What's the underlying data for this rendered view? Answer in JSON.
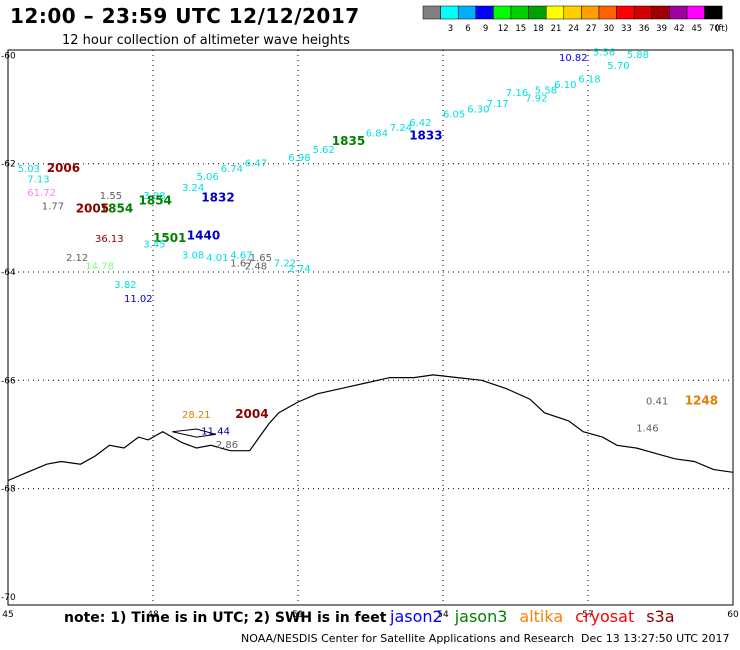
{
  "title": "12:00 – 23:59 UTC 12/12/2017",
  "subtitle": "12 hour collection of altimeter wave heights",
  "colorbar": {
    "unit": "(ft)",
    "bins": [
      {
        "label": "",
        "color": "#808080"
      },
      {
        "label": "3",
        "color": "#00ffff"
      },
      {
        "label": "6",
        "color": "#00b0ff"
      },
      {
        "label": "9",
        "color": "#0000ff"
      },
      {
        "label": "12",
        "color": "#00ff00"
      },
      {
        "label": "15",
        "color": "#00d000"
      },
      {
        "label": "18",
        "color": "#00a000"
      },
      {
        "label": "21",
        "color": "#ffff00"
      },
      {
        "label": "24",
        "color": "#ffd000"
      },
      {
        "label": "27",
        "color": "#ffa000"
      },
      {
        "label": "30",
        "color": "#ff6000"
      },
      {
        "label": "33",
        "color": "#ff0000"
      },
      {
        "label": "36",
        "color": "#d00000"
      },
      {
        "label": "39",
        "color": "#a00000"
      },
      {
        "label": "42",
        "color": "#a000a0"
      },
      {
        "label": "45",
        "color": "#ff00ff"
      },
      {
        "label": "70",
        "color": "#000000"
      }
    ]
  },
  "axes": {
    "xlabels": [
      "45",
      "48",
      "51",
      "54",
      "57",
      "60"
    ],
    "ylabels": [
      "-60",
      "-62",
      "-64",
      "-66",
      "-68",
      "-70"
    ]
  },
  "labels": [
    {
      "text": "10.82",
      "lon": 56.4,
      "lat": -60.1,
      "color": "#0000ff"
    },
    {
      "text": "5.56",
      "lon": 57.1,
      "lat": -60.0,
      "color": "#00e0e0"
    },
    {
      "text": "5.88",
      "lon": 57.8,
      "lat": -60.05,
      "color": "#00e0e0"
    },
    {
      "text": "5.70",
      "lon": 57.4,
      "lat": -60.25,
      "color": "#00e0e0"
    },
    {
      "text": "6.18",
      "lon": 56.8,
      "lat": -60.5,
      "color": "#00e0e0"
    },
    {
      "text": "6.10",
      "lon": 56.3,
      "lat": -60.6,
      "color": "#00e0e0"
    },
    {
      "text": "5.58",
      "lon": 55.9,
      "lat": -60.7,
      "color": "#00e0e0"
    },
    {
      "text": "7.16",
      "lon": 55.3,
      "lat": -60.75,
      "color": "#00e0e0"
    },
    {
      "text": "7.92",
      "lon": 55.7,
      "lat": -60.85,
      "color": "#00e0e0"
    },
    {
      "text": "7.17",
      "lon": 54.9,
      "lat": -60.95,
      "color": "#00e0e0"
    },
    {
      "text": "6.30",
      "lon": 54.5,
      "lat": -61.05,
      "color": "#00e0e0"
    },
    {
      "text": "6.05",
      "lon": 54.0,
      "lat": -61.15,
      "color": "#00e0e0"
    },
    {
      "text": "6.42",
      "lon": 53.3,
      "lat": -61.3,
      "color": "#00e0e0"
    },
    {
      "text": "7.24",
      "lon": 52.9,
      "lat": -61.4,
      "color": "#00e0e0"
    },
    {
      "text": "1833",
      "lon": 53.3,
      "lat": -61.55,
      "color": "#0000c8",
      "big": true
    },
    {
      "text": "6.84",
      "lon": 52.4,
      "lat": -61.5,
      "color": "#00e0e0"
    },
    {
      "text": "5.62",
      "lon": 51.3,
      "lat": -61.8,
      "color": "#00e0e0"
    },
    {
      "text": "1835",
      "lon": 51.7,
      "lat": -61.65,
      "color": "#008000",
      "big": true
    },
    {
      "text": "6.98",
      "lon": 50.8,
      "lat": -61.95,
      "color": "#00e0e0"
    },
    {
      "text": "6.47",
      "lon": 49.9,
      "lat": -62.05,
      "color": "#00e0e0"
    },
    {
      "text": "6.74",
      "lon": 49.4,
      "lat": -62.15,
      "color": "#00e0e0"
    },
    {
      "text": "5.06",
      "lon": 48.9,
      "lat": -62.3,
      "color": "#00e0e0"
    },
    {
      "text": "3.24",
      "lon": 48.6,
      "lat": -62.5,
      "color": "#00e0e0"
    },
    {
      "text": "1832",
      "lon": 49.0,
      "lat": -62.7,
      "color": "#0000c8",
      "big": true
    },
    {
      "text": "3.98",
      "lon": 47.8,
      "lat": -62.65,
      "color": "#00e0e0"
    },
    {
      "text": "1854",
      "lon": 47.7,
      "lat": -62.75,
      "color": "#008000",
      "big": true
    },
    {
      "text": "1854",
      "lon": 46.9,
      "lat": -62.9,
      "color": "#008000",
      "big": true
    },
    {
      "text": "2006",
      "lon": 45.8,
      "lat": -62.15,
      "color": "#8b0000",
      "big": true
    },
    {
      "text": "5.03",
      "lon": 45.2,
      "lat": -62.15,
      "color": "#00e0e0"
    },
    {
      "text": "7.13",
      "lon": 45.4,
      "lat": -62.35,
      "color": "#00e0e0"
    },
    {
      "text": "61.72",
      "lon": 45.4,
      "lat": -62.6,
      "color": "#ff80ff"
    },
    {
      "text": "1.77",
      "lon": 45.7,
      "lat": -62.85,
      "color": "#606060"
    },
    {
      "text": "2005",
      "lon": 46.4,
      "lat": -62.9,
      "color": "#8b0000",
      "big": true
    },
    {
      "text": "1.55",
      "lon": 46.9,
      "lat": -62.65,
      "color": "#606060"
    },
    {
      "text": "36.13",
      "lon": 46.8,
      "lat": -63.45,
      "color": "#8b0000"
    },
    {
      "text": "1501",
      "lon": 48.0,
      "lat": -63.45,
      "color": "#008000",
      "big": true
    },
    {
      "text": "1440",
      "lon": 48.7,
      "lat": -63.4,
      "color": "#0000c8",
      "big": true
    },
    {
      "text": "3.45",
      "lon": 47.8,
      "lat": -63.55,
      "color": "#00e0e0"
    },
    {
      "text": "3.08",
      "lon": 48.6,
      "lat": -63.75,
      "color": "#00e0e0"
    },
    {
      "text": "4.01",
      "lon": 49.1,
      "lat": -63.8,
      "color": "#00e0e0"
    },
    {
      "text": "4.67",
      "lon": 49.6,
      "lat": -63.75,
      "color": "#00e0e0"
    },
    {
      "text": "1.67",
      "lon": 49.6,
      "lat": -63.9,
      "color": "#606060"
    },
    {
      "text": "1.65",
      "lon": 50.0,
      "lat": -63.8,
      "color": "#606060"
    },
    {
      "text": "2.48",
      "lon": 49.9,
      "lat": -63.95,
      "color": "#606060"
    },
    {
      "text": "7.22",
      "lon": 50.5,
      "lat": -63.9,
      "color": "#00e0e0"
    },
    {
      "text": "2.74",
      "lon": 50.8,
      "lat": -64.0,
      "color": "#00e0e0"
    },
    {
      "text": "2.12",
      "lon": 46.2,
      "lat": -63.8,
      "color": "#606060"
    },
    {
      "text": "14.78",
      "lon": 46.6,
      "lat": -63.95,
      "color": "#80ff80"
    },
    {
      "text": "3.82",
      "lon": 47.2,
      "lat": -64.3,
      "color": "#00e0e0"
    },
    {
      "text": "11.02",
      "lon": 47.4,
      "lat": -64.55,
      "color": "#0000c8"
    },
    {
      "text": "28.21",
      "lon": 48.6,
      "lat": -66.7,
      "color": "#e08000"
    },
    {
      "text": "2004",
      "lon": 49.7,
      "lat": -66.7,
      "color": "#8b0000",
      "big": true
    },
    {
      "text": "11.44",
      "lon": 49.0,
      "lat": -67.0,
      "color": "#0000c8"
    },
    {
      "text": "2.86",
      "lon": 49.3,
      "lat": -67.25,
      "color": "#606060"
    },
    {
      "text": "0.41",
      "lon": 58.2,
      "lat": -66.45,
      "color": "#606060"
    },
    {
      "text": "1248",
      "lon": 59.0,
      "lat": -66.45,
      "color": "#e08000",
      "big": true
    },
    {
      "text": "1.46",
      "lon": 58.0,
      "lat": -66.95,
      "color": "#606060"
    }
  ],
  "note": "note: 1) Time is in UTC; 2) SWH is in feet",
  "legend": [
    {
      "name": "jason2",
      "color": "#0000ff"
    },
    {
      "name": "jason3",
      "color": "#008000"
    },
    {
      "name": "altika",
      "color": "#ff8000"
    },
    {
      "name": "cryosat",
      "color": "#ff0000"
    },
    {
      "name": "s3a",
      "color": "#8b0000"
    }
  ],
  "credit": "NOAA/NESDIS Center for Satellite Applications and Research",
  "timestamp": "Dec 13 13:27:50 UTC 2017"
}
